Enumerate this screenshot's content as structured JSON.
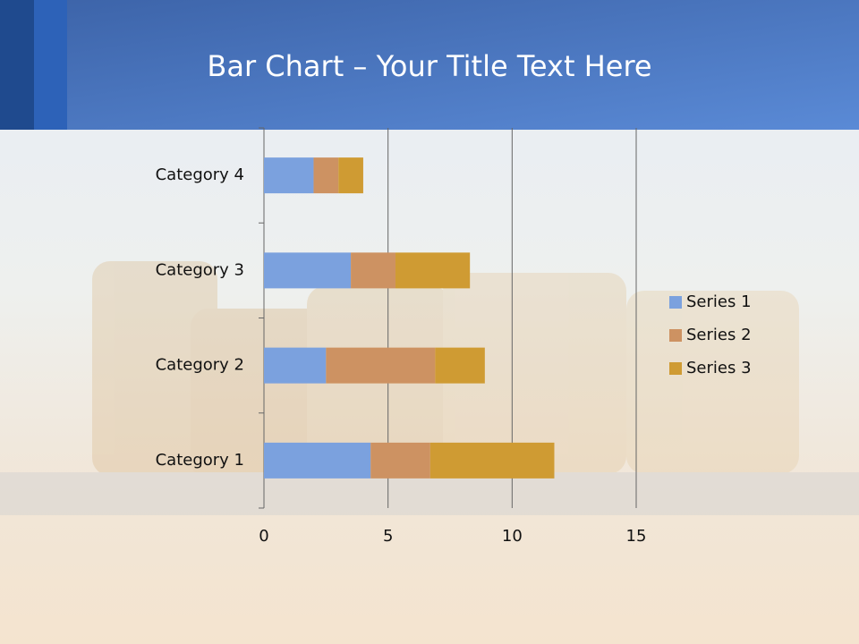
{
  "chart_data": {
    "type": "stacked-bar-horizontal",
    "title": "Bar Chart – Your Title Text Here",
    "categories": [
      "Category 1",
      "Category 2",
      "Category 3",
      "Category 4"
    ],
    "series": [
      {
        "name": "Series 1",
        "color": "#7ba1de",
        "values": [
          4.3,
          2.5,
          3.5,
          2.0
        ]
      },
      {
        "name": "Series 2",
        "color": "#cd9262",
        "values": [
          2.4,
          4.4,
          1.8,
          1.0
        ]
      },
      {
        "name": "Series 3",
        "color": "#cf9b33",
        "values": [
          5.0,
          2.0,
          3.0,
          1.0
        ]
      }
    ],
    "xlim": [
      0,
      15
    ],
    "xticks": [
      0,
      5,
      10,
      15
    ],
    "grid": true,
    "legend": "right"
  }
}
